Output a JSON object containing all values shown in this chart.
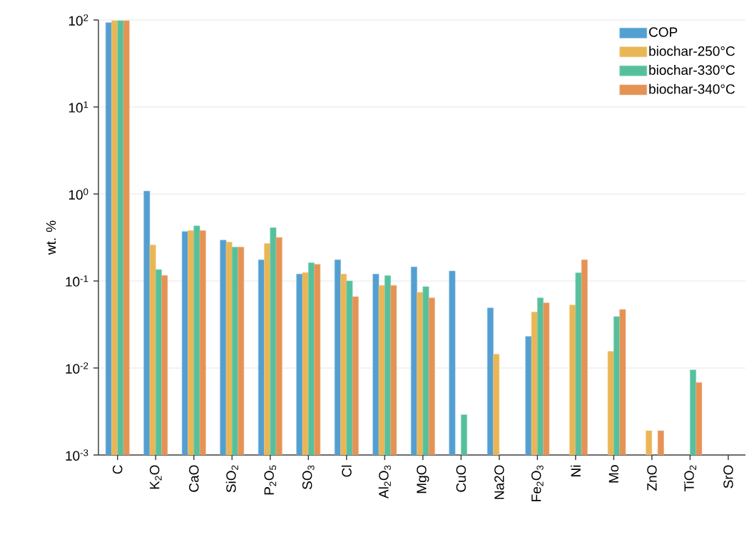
{
  "chart_data": {
    "type": "bar",
    "ylabel": "wt. %",
    "log": true,
    "grid": "y",
    "legend": "top right",
    "categories": [
      "C",
      "K$_{2}$O",
      "CaO",
      "SiO$_{2}$",
      "P$_{2}$O$_{5}$",
      "SO$_{3}$",
      "Cl",
      "Al$_{2}$O$_{3}$",
      "MgO",
      "CuO",
      "Na2O",
      "Fe$_{2}$O$_{3}$",
      "Ni",
      "Mo",
      "ZnO",
      "TiO$_{2}$",
      "SrO"
    ],
    "ylim": [
      0.001,
      100
    ],
    "yticks": [
      {
        "value": 0.001,
        "label": "10$^{-3}$"
      },
      {
        "value": 0.01,
        "label": "10$^{-2}$"
      },
      {
        "value": 0.1,
        "label": "10$^{-1}$"
      },
      {
        "value": 1,
        "label": "10$^{0}$"
      },
      {
        "value": 10,
        "label": "10$^{1}$"
      },
      {
        "value": 100,
        "label": "10$^{2}$"
      }
    ],
    "series": [
      {
        "name": "COP",
        "color": "#4a9ad0",
        "values": [
          93,
          1.08,
          0.37,
          0.295,
          0.175,
          0.12,
          0.175,
          0.12,
          0.145,
          0.13,
          0.049,
          0.023,
          null,
          null,
          null,
          null,
          null
        ]
      },
      {
        "name": "biochar-250°C",
        "color": "#e9b24c",
        "values": [
          98,
          0.26,
          0.38,
          0.28,
          0.27,
          0.125,
          0.12,
          0.089,
          0.074,
          null,
          0.0144,
          0.044,
          0.053,
          0.0155,
          0.0019,
          null,
          null
        ]
      },
      {
        "name": "biochar-330°C",
        "color": "#4dbd98",
        "values": [
          98,
          0.135,
          0.43,
          0.245,
          0.41,
          0.162,
          0.1,
          0.115,
          0.086,
          0.0029,
          null,
          0.064,
          0.124,
          0.039,
          null,
          0.0095,
          null
        ]
      },
      {
        "name": "biochar-340°C",
        "color": "#e48d4c",
        "values": [
          98,
          0.116,
          0.38,
          0.245,
          0.316,
          0.155,
          0.066,
          0.089,
          0.064,
          null,
          null,
          0.056,
          0.175,
          0.047,
          0.0019,
          0.0068,
          null
        ]
      }
    ]
  }
}
